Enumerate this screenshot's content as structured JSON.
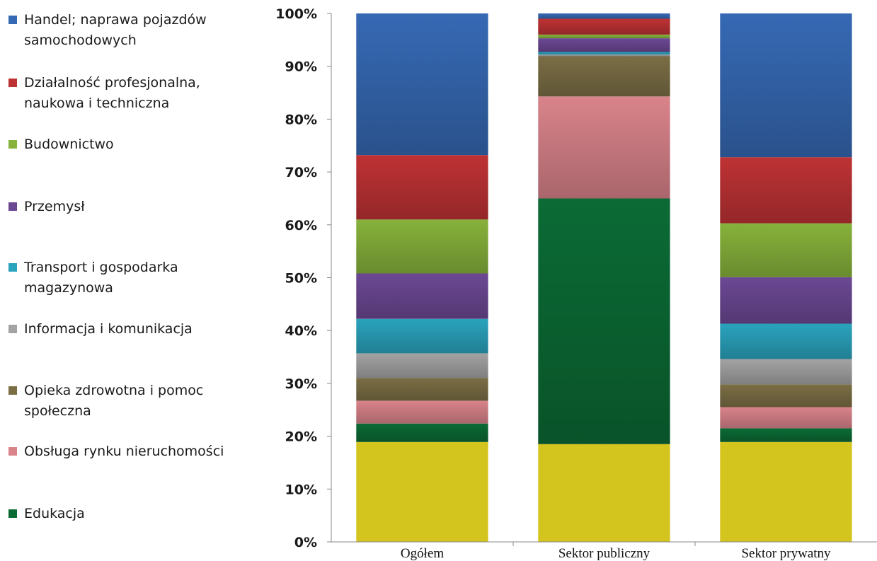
{
  "chart_data": {
    "type": "bar",
    "stacked": true,
    "percent": true,
    "categories": [
      "Ogółem",
      "Sektor publiczny",
      "Sektor prywatny"
    ],
    "ylim": [
      0,
      100
    ],
    "ytick_labels": [
      "0%",
      "10%",
      "20%",
      "30%",
      "40%",
      "50%",
      "60%",
      "70%",
      "80%",
      "90%",
      "100%"
    ],
    "grid": false,
    "legend_position": "left",
    "series": [
      {
        "name": "",
        "color": "#d4c41e",
        "values": [
          18.9,
          18.5,
          18.9
        ]
      },
      {
        "name": "Edukacja",
        "color": "#0b6b35",
        "values": [
          3.5,
          46.5,
          2.6
        ]
      },
      {
        "name": "Obsługa rynku nieruchomości",
        "color": "#d9838a",
        "values": [
          4.3,
          19.3,
          4.0
        ]
      },
      {
        "name": "Opieka zdrowotna i pomoc społeczna",
        "color": "#7b6e45",
        "values": [
          4.3,
          7.6,
          4.3
        ]
      },
      {
        "name": "Informacja i komunikacja",
        "color": "#a3a3a3",
        "values": [
          4.7,
          0.3,
          4.8
        ]
      },
      {
        "name": "Transport i gospodarka magazynowa",
        "color": "#2aa3bd",
        "values": [
          6.5,
          0.5,
          6.7
        ]
      },
      {
        "name": "Przemysł",
        "color": "#6c4894",
        "values": [
          8.6,
          2.6,
          8.8
        ]
      },
      {
        "name": "Budownictwo",
        "color": "#87b23b",
        "values": [
          10.2,
          0.7,
          10.2
        ]
      },
      {
        "name": "Działalność profesjonalna, naukowa i techniczna",
        "color": "#be3234",
        "values": [
          12.2,
          3.0,
          12.5
        ]
      },
      {
        "name": "Handel; naprawa pojazdów samochodowych",
        "color": "#3669b4",
        "values": [
          26.8,
          1.0,
          27.2
        ]
      }
    ]
  },
  "legend": [
    {
      "label": "Handel; naprawa pojazdów samochodowych",
      "color": "#3669b4",
      "icon": "square-swatch"
    },
    {
      "label": "Działalność profesjonalna, naukowa i techniczna",
      "color": "#be3234",
      "icon": "square-swatch"
    },
    {
      "label": "Budownictwo",
      "color": "#87b23b",
      "icon": "square-swatch"
    },
    {
      "label": "Przemysł",
      "color": "#6c4894",
      "icon": "square-swatch"
    },
    {
      "label": "Transport i gospodarka magazynowa",
      "color": "#2aa3bd",
      "icon": "square-swatch"
    },
    {
      "label": "Informacja i komunikacja",
      "color": "#a3a3a3",
      "icon": "square-swatch"
    },
    {
      "label": "Opieka zdrowotna i pomoc społeczna",
      "color": "#7b6e45",
      "icon": "square-swatch"
    },
    {
      "label": "Obsługa rynku nieruchomości",
      "color": "#d9838a",
      "icon": "square-swatch"
    },
    {
      "label": "Edukacja",
      "color": "#0b6b35",
      "icon": "square-swatch"
    }
  ]
}
